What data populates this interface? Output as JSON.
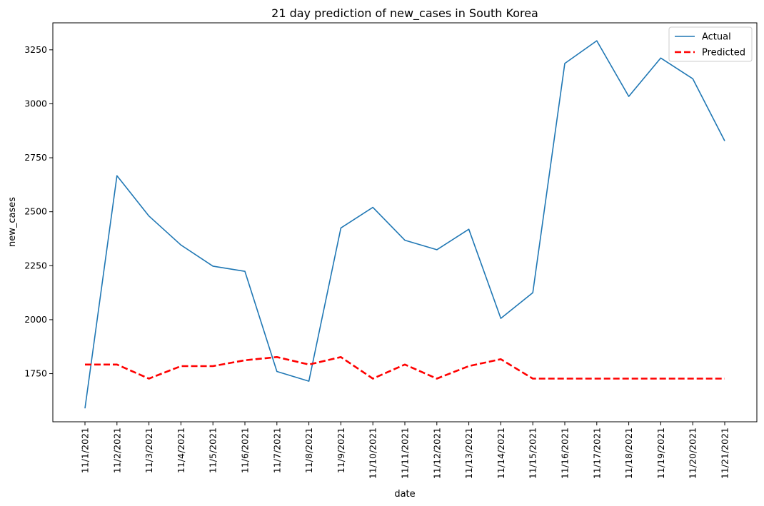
{
  "chart_data": {
    "type": "line",
    "title": "21 day prediction of new_cases in South Korea",
    "xlabel": "date",
    "ylabel": "new_cases",
    "categories": [
      "11/1/2021",
      "11/2/2021",
      "11/3/2021",
      "11/4/2021",
      "11/5/2021",
      "11/6/2021",
      "11/7/2021",
      "11/8/2021",
      "11/9/2021",
      "11/10/2021",
      "11/11/2021",
      "11/12/2021",
      "11/13/2021",
      "11/14/2021",
      "11/15/2021",
      "11/16/2021",
      "11/17/2021",
      "11/18/2021",
      "11/19/2021",
      "11/20/2021",
      "11/21/2021"
    ],
    "yticks": [
      1750,
      2000,
      2250,
      2500,
      2750,
      3000,
      3250
    ],
    "ylim": [
      1527,
      3375
    ],
    "grid": false,
    "legend_position": "top-right",
    "series": [
      {
        "name": "Actual",
        "color": "#1f77b4",
        "style": "solid",
        "values": [
          1589,
          2667,
          2480,
          2346,
          2248,
          2224,
          1760,
          1715,
          2425,
          2520,
          2368,
          2324,
          2419,
          2006,
          2125,
          3187,
          3292,
          3034,
          3212,
          3116,
          2828
        ]
      },
      {
        "name": "Predicted",
        "color": "#ff0000",
        "style": "dashed",
        "values": [
          1792,
          1792,
          1727,
          1785,
          1785,
          1812,
          1827,
          1792,
          1827,
          1727,
          1792,
          1727,
          1785,
          1817,
          1727,
          1727,
          1727,
          1727,
          1727,
          1727,
          1727
        ]
      }
    ]
  }
}
